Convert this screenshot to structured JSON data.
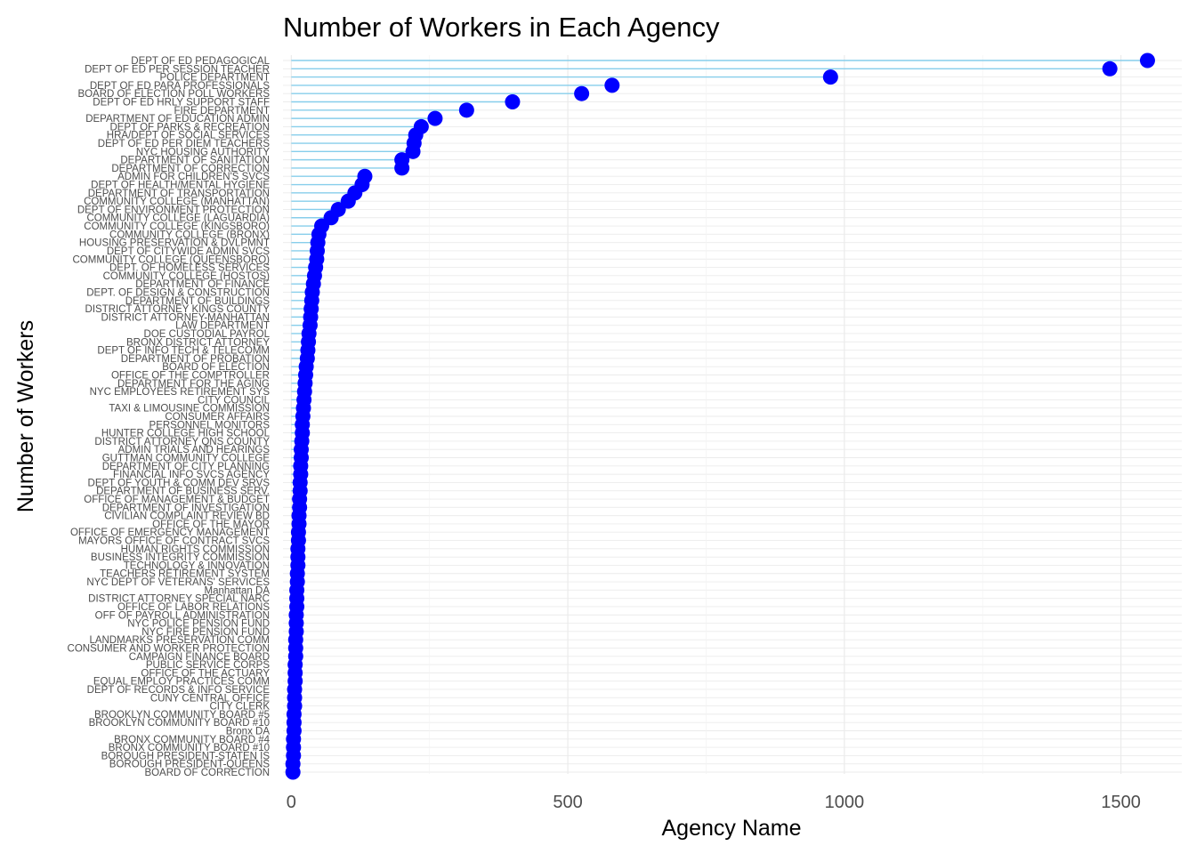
{
  "chart_data": {
    "type": "lollipop",
    "orientation": "horizontal",
    "title": "Number of Workers in Each Agency",
    "xlabel": "Agency Name",
    "ylabel": "Number of Workers",
    "xlim": [
      -15,
      1610
    ],
    "x_ticks": [
      0,
      500,
      1000,
      1500
    ],
    "x_tick_labels": [
      "0",
      "500",
      "1000",
      "1500"
    ],
    "grid": true,
    "legend": "none",
    "colors": {
      "point": "#0000ff",
      "segment": "#87ceeb",
      "grid": "#ebebeb"
    },
    "categories": [
      "DEPT OF ED PEDAGOGICAL",
      "DEPT OF ED PER SESSION TEACHER",
      "POLICE DEPARTMENT",
      "DEPT OF ED PARA PROFESSIONALS",
      "BOARD OF ELECTION POLL WORKERS",
      "DEPT OF ED HRLY SUPPORT STAFF",
      "FIRE DEPARTMENT",
      "DEPARTMENT OF EDUCATION ADMIN",
      "DEPT OF PARKS & RECREATION",
      "HRA/DEPT OF SOCIAL SERVICES",
      "DEPT OF ED PER DIEM TEACHERS",
      "NYC HOUSING AUTHORITY",
      "DEPARTMENT OF SANITATION",
      "DEPARTMENT OF CORRECTION",
      "ADMIN FOR CHILDREN'S SVCS",
      "DEPT OF HEALTH/MENTAL HYGIENE",
      "DEPARTMENT OF TRANSPORTATION",
      "COMMUNITY COLLEGE (MANHATTAN)",
      "DEPT OF ENVIRONMENT PROTECTION",
      "COMMUNITY COLLEGE (LAGUARDIA)",
      "COMMUNITY COLLEGE (KINGSBORO)",
      "COMMUNITY COLLEGE (BRONX)",
      "HOUSING PRESERVATION & DVLPMNT",
      "DEPT OF CITYWIDE ADMIN SVCS",
      "COMMUNITY COLLEGE (QUEENSBORO)",
      "DEPT. OF HOMELESS SERVICES",
      "COMMUNITY COLLEGE (HOSTOS)",
      "DEPARTMENT OF FINANCE",
      "DEPT. OF DESIGN & CONSTRUCTION",
      "DEPARTMENT OF BUILDINGS",
      "DISTRICT ATTORNEY KINGS COUNTY",
      "DISTRICT ATTORNEY-MANHATTAN",
      "LAW DEPARTMENT",
      "DOE CUSTODIAL PAYROL",
      "BRONX DISTRICT ATTORNEY",
      "DEPT OF INFO TECH & TELECOMM",
      "DEPARTMENT OF PROBATION",
      "BOARD OF ELECTION",
      "OFFICE OF THE COMPTROLLER",
      "DEPARTMENT FOR THE AGING",
      "NYC EMPLOYEES RETIREMENT SYS",
      "CITY COUNCIL",
      "TAXI & LIMOUSINE COMMISSION",
      "CONSUMER AFFAIRS",
      "PERSONNEL MONITORS",
      "HUNTER COLLEGE HIGH SCHOOL",
      "DISTRICT ATTORNEY QNS COUNTY",
      "ADMIN TRIALS AND HEARINGS",
      "GUTTMAN COMMUNITY COLLEGE",
      "DEPARTMENT OF CITY PLANNING",
      "FINANCIAL INFO SVCS AGENCY",
      "DEPT OF YOUTH & COMM DEV SRVS",
      "DEPARTMENT OF BUSINESS SERV.",
      "OFFICE OF MANAGEMENT & BUDGET",
      "DEPARTMENT OF INVESTIGATION",
      "CIVILIAN COMPLAINT REVIEW BD",
      "OFFICE OF THE MAYOR",
      "OFFICE OF EMERGENCY MANAGEMENT",
      "MAYORS OFFICE OF CONTRACT SVCS",
      "HUMAN RIGHTS COMMISSION",
      "BUSINESS INTEGRITY COMMISSION",
      "TECHNOLOGY & INNOVATION",
      "TEACHERS RETIREMENT SYSTEM",
      "NYC DEPT OF VETERANS' SERVICES",
      "Manhattan DA",
      "DISTRICT ATTORNEY SPECIAL NARC",
      "OFFICE OF LABOR RELATIONS",
      "OFF OF PAYROLL ADMINISTRATION",
      "NYC POLICE PENSION FUND",
      "NYC FIRE PENSION FUND",
      "LANDMARKS PRESERVATION COMM",
      "CONSUMER AND WORKER PROTECTION",
      "CAMPAIGN FINANCE BOARD",
      "PUBLIC SERVICE CORPS",
      "OFFICE OF THE ACTUARY",
      "EQUAL EMPLOY PRACTICES COMM",
      "DEPT OF RECORDS & INFO SERVICE",
      "CUNY CENTRAL OFFICE",
      "CITY CLERK",
      "BROOKLYN COMMUNITY BOARD #5",
      "BROOKLYN COMMUNITY BOARD #10",
      "Bronx DA",
      "BRONX COMMUNITY BOARD #4",
      "BRONX COMMUNITY BOARD #10",
      "BOROUGH PRESIDENT-STATEN IS",
      "BOROUGH PRESIDENT-QUEENS",
      "BOARD OF CORRECTION"
    ],
    "values": [
      1548,
      1480,
      975,
      580,
      525,
      400,
      317,
      260,
      235,
      225,
      222,
      220,
      200,
      200,
      133,
      128,
      115,
      103,
      85,
      72,
      55,
      50,
      48,
      47,
      46,
      44,
      42,
      40,
      38,
      37,
      36,
      35,
      34,
      32,
      31,
      30,
      29,
      27,
      26,
      25,
      24,
      23,
      22,
      21,
      20,
      20,
      19,
      18,
      18,
      17,
      17,
      16,
      16,
      15,
      15,
      14,
      14,
      13,
      13,
      12,
      12,
      12,
      11,
      11,
      10,
      10,
      10,
      9,
      9,
      9,
      8,
      8,
      8,
      7,
      7,
      7,
      6,
      6,
      6,
      5,
      5,
      5,
      4,
      4,
      4,
      3,
      3
    ]
  }
}
